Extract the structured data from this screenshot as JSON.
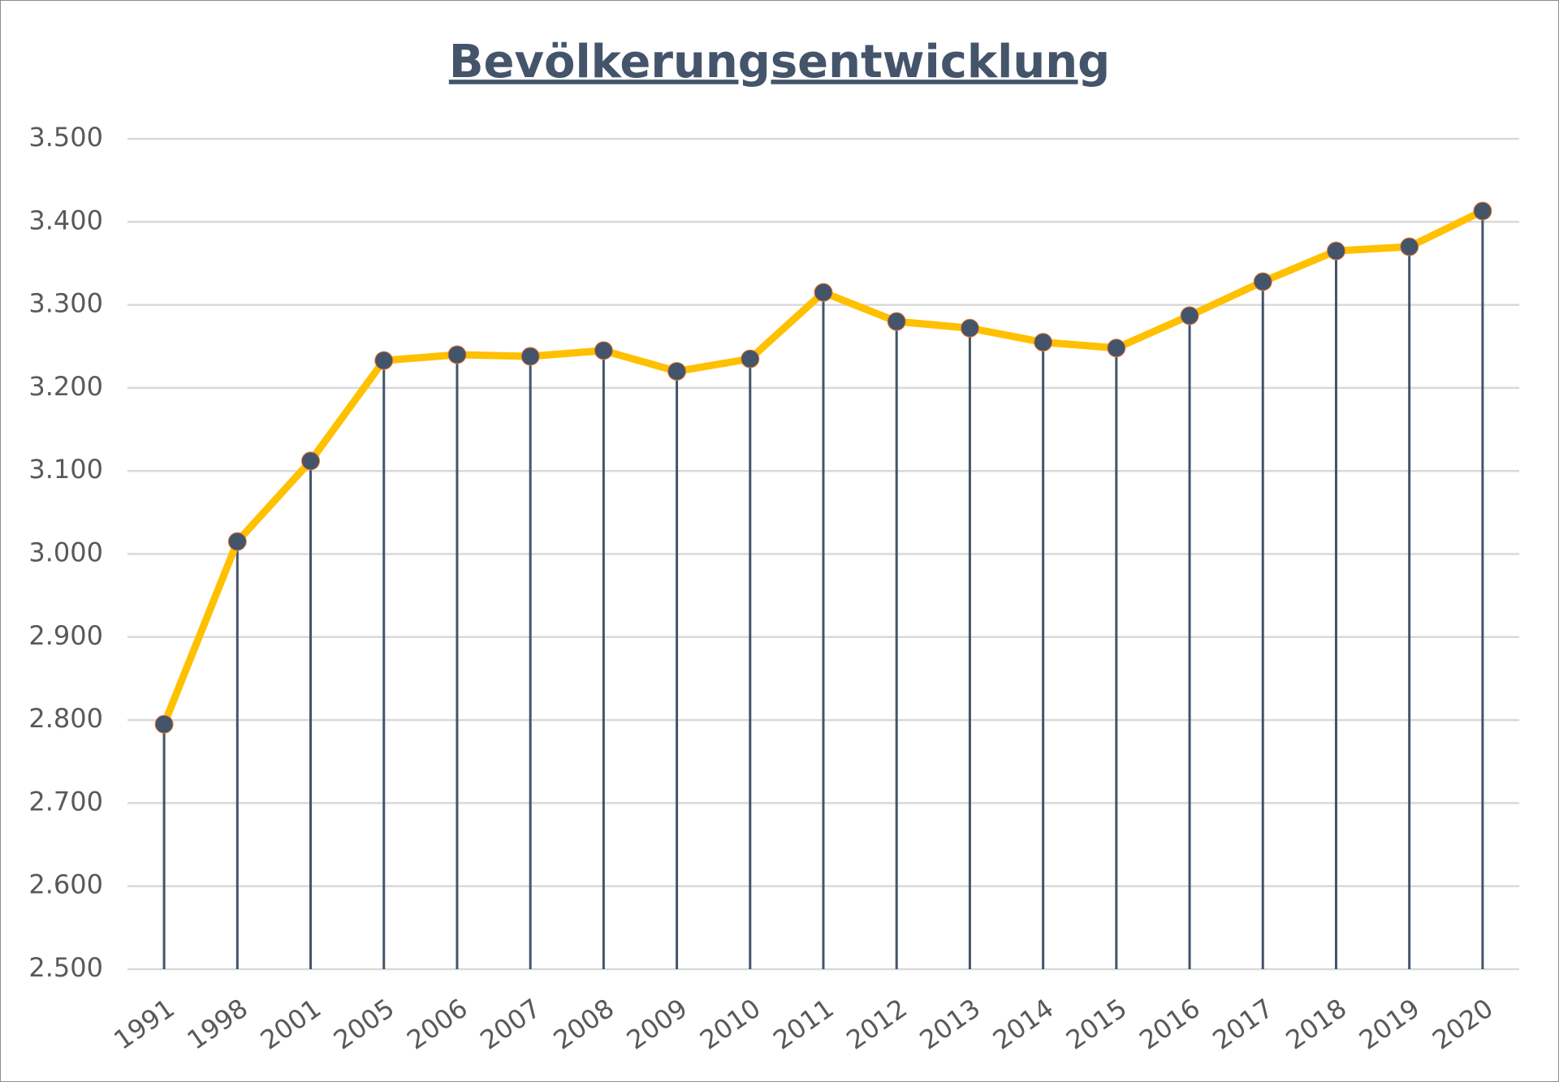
{
  "chart_data": {
    "type": "line",
    "title": "Bevölkerungsentwicklung",
    "categories": [
      "1991",
      "1998",
      "2001",
      "2005",
      "2006",
      "2007",
      "2008",
      "2009",
      "2010",
      "2011",
      "2012",
      "2013",
      "2014",
      "2015",
      "2016",
      "2017",
      "2018",
      "2019",
      "2020"
    ],
    "values": [
      2795,
      3015,
      3112,
      3233,
      3240,
      3238,
      3245,
      3220,
      3235,
      3315,
      3280,
      3272,
      3255,
      3248,
      3287,
      3328,
      3365,
      3370,
      3413
    ],
    "color": "#ffc000",
    "marker_color": "#44546a",
    "drop_lines": true,
    "ylim": [
      2500,
      3500
    ],
    "yticks": [
      {
        "value": 2500,
        "label": "2.500"
      },
      {
        "value": 2600,
        "label": "2.600"
      },
      {
        "value": 2700,
        "label": "2.700"
      },
      {
        "value": 2800,
        "label": "2.800"
      },
      {
        "value": 2900,
        "label": "2.900"
      },
      {
        "value": 3000,
        "label": "3.000"
      },
      {
        "value": 3100,
        "label": "3.100"
      },
      {
        "value": 3200,
        "label": "3.200"
      },
      {
        "value": 3300,
        "label": "3.300"
      },
      {
        "value": 3400,
        "label": "3.400"
      },
      {
        "value": 3500,
        "label": "3.500"
      }
    ],
    "grid": true
  }
}
